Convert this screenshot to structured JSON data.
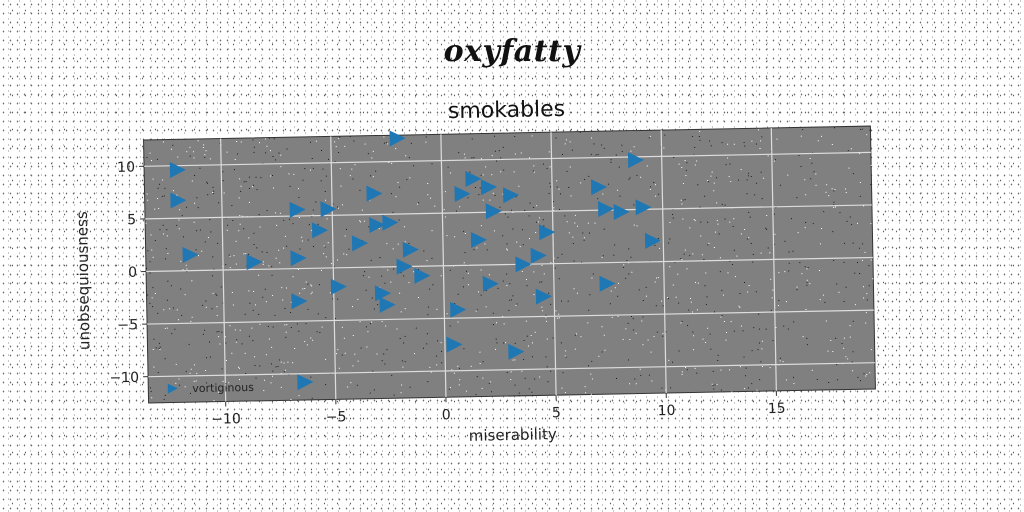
{
  "figure": {
    "suptitle": "oxyfatty"
  },
  "chart_data": {
    "type": "scatter",
    "title": "smokables",
    "xlabel": "miserability",
    "ylabel": "unobsequiousness",
    "xlim": [
      -13.5,
      19.5
    ],
    "ylim": [
      -12.5,
      12.5
    ],
    "xticks": [
      -10,
      -5,
      0,
      5,
      10,
      15
    ],
    "yticks": [
      -10,
      -5,
      0,
      5,
      10
    ],
    "grid": true,
    "legend_position": "lower-left",
    "marker": "triangle-right",
    "colors": {
      "axes_bg": "#808080",
      "marker": "#1f77b4",
      "grid": "#dddddd",
      "text": "#222222"
    },
    "series": [
      {
        "name": "vortiginous",
        "x": [
          -2,
          -12,
          8.8,
          -12,
          1.4,
          2.1,
          3.1,
          -3.1,
          0.9,
          -6.6,
          -5.2,
          2.3,
          7.1,
          7.4,
          8.1,
          9.1,
          -3,
          -2.4,
          -5.6,
          4.7,
          -3.8,
          1.6,
          -11.5,
          9.5,
          -8.6,
          -6.6,
          -1.5,
          4.3,
          -1.8,
          3.6,
          -1,
          2.1,
          -4.8,
          7.4,
          -2.8,
          -6.6,
          4.5,
          -2.6,
          0.6,
          0.4,
          3.2,
          -6.4
        ],
        "y": [
          12.2,
          9.6,
          9.7,
          6.7,
          8.2,
          7.4,
          6.6,
          7,
          6.8,
          5.6,
          5.6,
          5.1,
          7.2,
          5.1,
          4.8,
          5.2,
          4,
          4.2,
          3.6,
          3,
          2.3,
          2.4,
          1.5,
          2,
          0.7,
          1,
          1.6,
          0.8,
          0,
          0,
          -0.9,
          -1.8,
          -1.8,
          -2,
          -2.5,
          -3.1,
          -3.1,
          -3.6,
          -4.2,
          -7.5,
          -8.3,
          -10.8
        ]
      }
    ]
  }
}
